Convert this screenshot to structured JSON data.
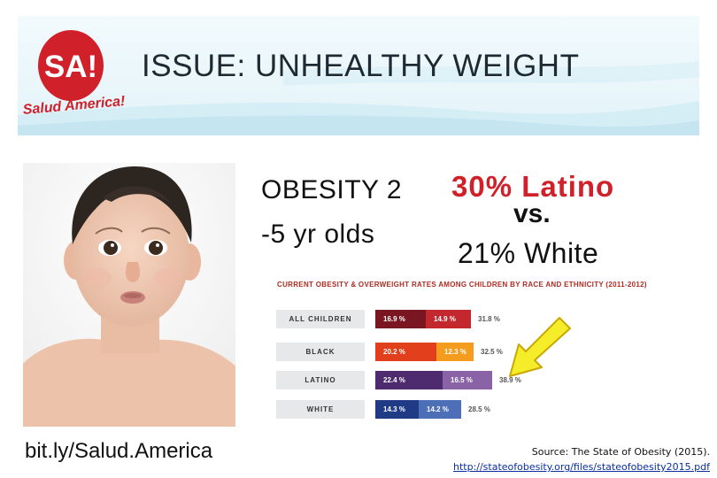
{
  "header": {
    "title": "ISSUE: UNHEALTHY WEIGHT",
    "logo_mark": "SA!",
    "logo_text": "Salud America!"
  },
  "colors": {
    "banner_top": "#eaf6fa",
    "banner_wave": "#d2edf5",
    "logo_red": "#d0202a",
    "latino_red": "#d0202a",
    "chart_title_red": "#b22a20",
    "arrow_yellow": "#f5ec2a",
    "link_blue": "#0b2f9f"
  },
  "image": {
    "icon": "baby-photo"
  },
  "caption_url": "bit.ly/Salud.America",
  "obesity": {
    "label_line1": "OBESITY 2",
    "label_line2": "-5 yr olds",
    "latino": "30% Latino",
    "vs": "vs.",
    "white": "21% White"
  },
  "chart_data": {
    "type": "bar",
    "title": "CURRENT OBESITY & OVERWEIGHT RATES AMONG CHILDREN BY RACE AND ETHNICITY (2011-2012)",
    "categories": [
      "ALL CHILDREN",
      "BLACK",
      "LATINO",
      "WHITE"
    ],
    "series": [
      {
        "values": [
          16.9,
          20.2,
          22.4,
          14.3
        ]
      },
      {
        "values": [
          14.9,
          12.3,
          16.5,
          14.2
        ]
      }
    ],
    "labels": [
      [
        "16.9 %",
        "14.9 %",
        "31.8 %"
      ],
      [
        "20.2 %",
        "12.3 %",
        "32.5 %"
      ],
      [
        "22.4 %",
        "16.5 %",
        "38.9 %"
      ],
      [
        "14.3 %",
        "14.2 %",
        "28.5 %"
      ]
    ],
    "totals": [
      31.8,
      32.5,
      38.9,
      28.5
    ],
    "colors": [
      [
        "#7a1622",
        "#c4282f"
      ],
      [
        "#e2401c",
        "#f39c1e"
      ],
      [
        "#4e2a6e",
        "#8a63a6"
      ],
      [
        "#1f3b86",
        "#4d6fb8"
      ]
    ]
  },
  "arrow": {
    "icon": "yellow-arrow-icon"
  },
  "source": {
    "text": "Source: The State of Obesity (2015).",
    "url": "http://stateofobesity.org/files/stateofobesity2015.pdf"
  }
}
